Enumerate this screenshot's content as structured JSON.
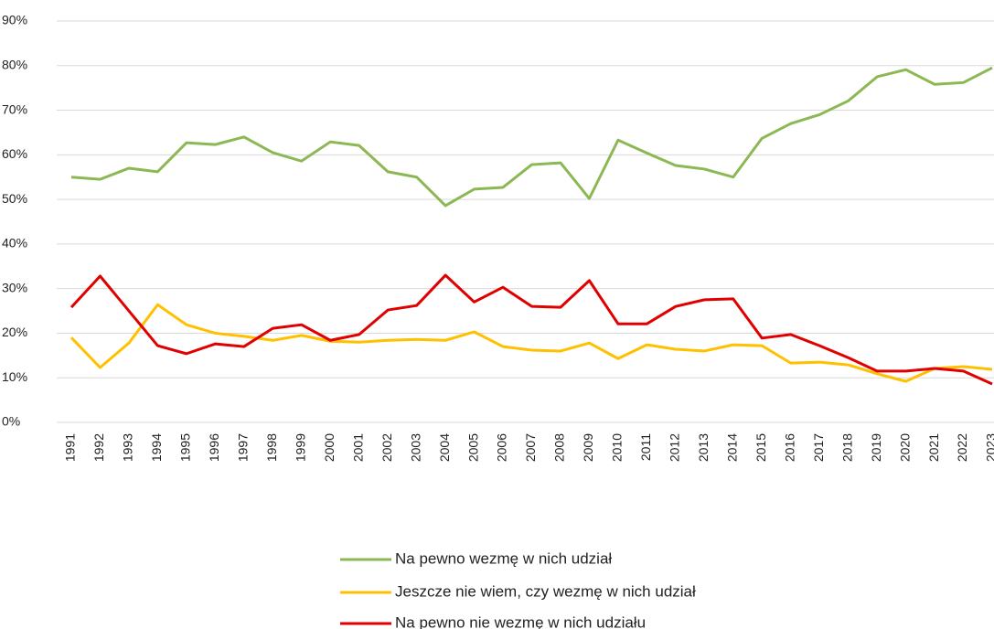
{
  "chart_data": {
    "type": "line",
    "categories": [
      "1991",
      "1992",
      "1993",
      "1994",
      "1995",
      "1996",
      "1997",
      "1998",
      "1999",
      "2000",
      "2001",
      "2002",
      "2003",
      "2004",
      "2005",
      "2006",
      "2007",
      "2008",
      "2009",
      "2010",
      "2011",
      "2012",
      "2013",
      "2014",
      "2015",
      "2016",
      "2017",
      "2018",
      "2019",
      "2020",
      "2021",
      "2022",
      "2023"
    ],
    "series": [
      {
        "name": "Na pewno wezmę w nich udział",
        "color": "#8cb854",
        "values": [
          55,
          54.5,
          57,
          56.2,
          62.7,
          62.3,
          64,
          60.5,
          58.6,
          62.9,
          62.1,
          56.2,
          55,
          48.6,
          52.3,
          52.7,
          57.8,
          58.2,
          50.2,
          63.3,
          60.4,
          57.6,
          56.8,
          55,
          63.7,
          67,
          69,
          72.1,
          77.5,
          79.1,
          75.8,
          76.2,
          79.5
        ]
      },
      {
        "name": "Jeszcze nie wiem, czy wezmę w nich udział",
        "color": "#ffc000",
        "values": [
          19,
          12.3,
          17.8,
          26.4,
          21.9,
          20,
          19.3,
          18.4,
          19.5,
          18.2,
          18,
          18.4,
          18.6,
          18.4,
          20.3,
          17,
          16.2,
          16,
          17.8,
          14.3,
          17.4,
          16.4,
          16,
          17.4,
          17.2,
          13.3,
          13.5,
          12.9,
          10.9,
          9.2,
          12.1,
          12.5,
          11.9
        ]
      },
      {
        "name": "Na pewno nie wezmę w nich udziału",
        "color": "#e00000",
        "values": [
          25.8,
          32.8,
          25,
          17.2,
          15.4,
          17.6,
          17,
          21.1,
          21.9,
          18.4,
          19.7,
          25.2,
          26.2,
          33,
          27,
          30.3,
          26,
          25.8,
          31.8,
          22.1,
          22.1,
          26,
          27.5,
          27.7,
          18.9,
          19.7,
          17.2,
          14.5,
          11.5,
          11.5,
          12.1,
          11.5,
          8.6
        ]
      }
    ],
    "ylim": [
      0,
      90
    ],
    "yticks": [
      {
        "value": 0,
        "label": "0%"
      },
      {
        "value": 10,
        "label": "10%"
      },
      {
        "value": 20,
        "label": "20%"
      },
      {
        "value": 30,
        "label": "30%"
      },
      {
        "value": 40,
        "label": "40%"
      },
      {
        "value": 50,
        "label": "50%"
      },
      {
        "value": 60,
        "label": "60%"
      },
      {
        "value": 70,
        "label": "70%"
      },
      {
        "value": 80,
        "label": "80%"
      },
      {
        "value": 90,
        "label": "90%"
      }
    ],
    "grid": true,
    "legend": "bottom"
  }
}
